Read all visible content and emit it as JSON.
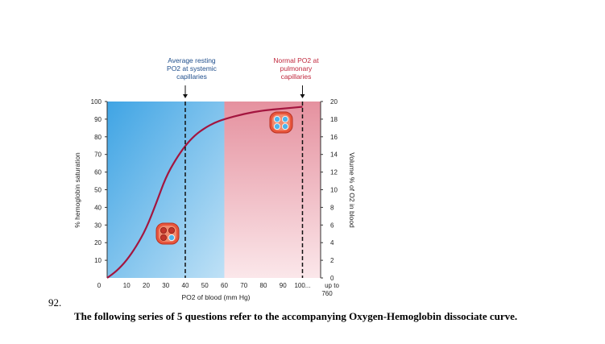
{
  "question": {
    "number": "92.",
    "text": "The following series of 5 questions refer to the accompanying Oxygen-Hemoglobin dissociate curve."
  },
  "chart_data": {
    "type": "line",
    "xlabel": "PO2 of blood (mm Hg)",
    "ylabel": "% hemoglobin saturation",
    "y2label": "Volume % of O2 in blood",
    "x_ticks": [
      "0",
      "10",
      "20",
      "30",
      "40",
      "50",
      "60",
      "70",
      "80",
      "90",
      "100..."
    ],
    "x_tick_extra": [
      "up to",
      "760"
    ],
    "y_ticks": [
      "10",
      "20",
      "30",
      "40",
      "50",
      "60",
      "70",
      "80",
      "90",
      "100"
    ],
    "y2_ticks": [
      "0",
      "2",
      "4",
      "6",
      "8",
      "10",
      "12",
      "14",
      "16",
      "18",
      "20"
    ],
    "xlim": [
      0,
      100
    ],
    "ylim": [
      0,
      100
    ],
    "y2lim": [
      0,
      20
    ],
    "regions": [
      {
        "from": 0,
        "to": 60,
        "color": "#5fb0e6"
      },
      {
        "from": 60,
        "to": 100,
        "color": "#e898a6"
      }
    ],
    "series": [
      {
        "color": "#a3153f",
        "points": [
          [
            0,
            0
          ],
          [
            5,
            4
          ],
          [
            10,
            10
          ],
          [
            15,
            18
          ],
          [
            20,
            28
          ],
          [
            25,
            42
          ],
          [
            30,
            57
          ],
          [
            35,
            67
          ],
          [
            40,
            75
          ],
          [
            45,
            81
          ],
          [
            50,
            85
          ],
          [
            55,
            88
          ],
          [
            60,
            90
          ],
          [
            70,
            93
          ],
          [
            80,
            95
          ],
          [
            90,
            96
          ],
          [
            100,
            97
          ]
        ]
      }
    ],
    "markers": [
      {
        "x": 40,
        "label_lines": [
          "Average resting",
          "PO2 at systemic",
          "capillaries"
        ],
        "color": "#1f4e8c"
      },
      {
        "x": 100,
        "label_lines": [
          "Normal  PO2 at",
          "pulmonary",
          "capillaries"
        ],
        "color": "#c0283d"
      }
    ]
  }
}
